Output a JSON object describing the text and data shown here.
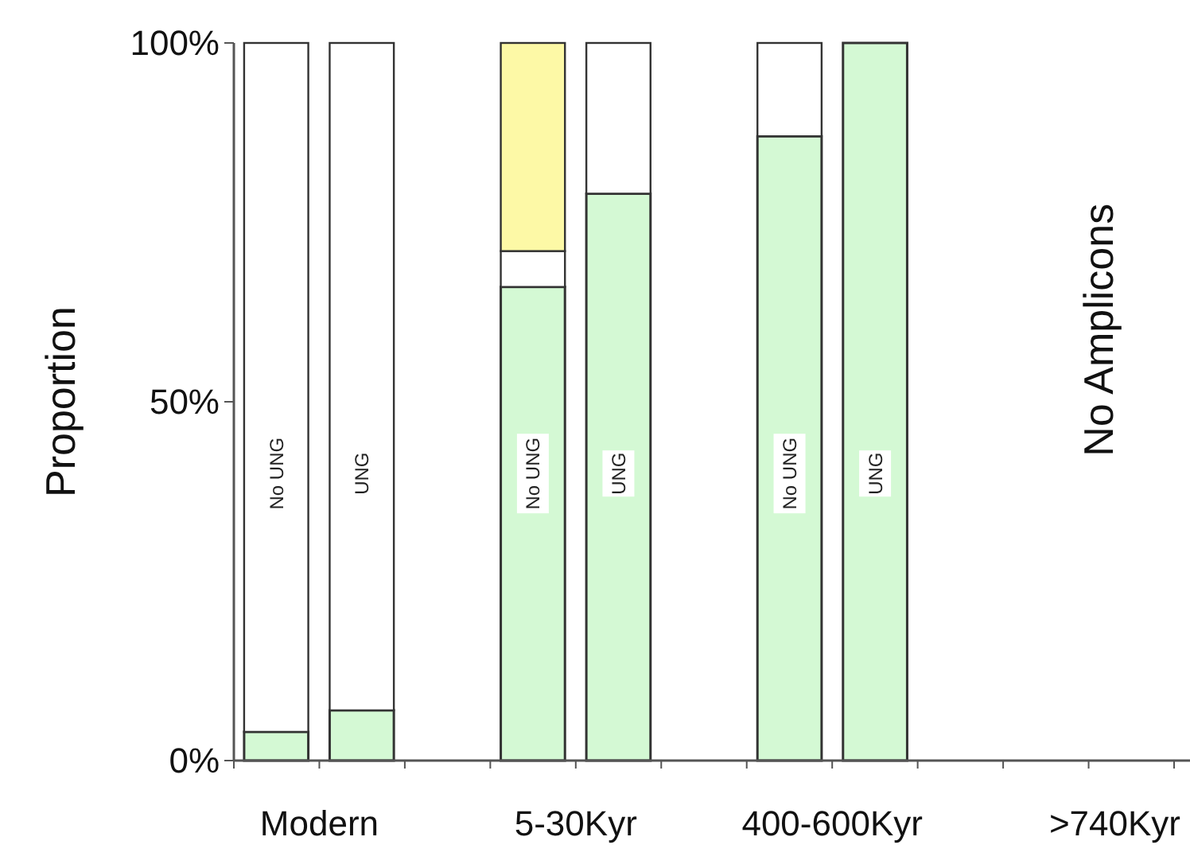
{
  "chart_data": {
    "type": "bar",
    "stacked": true,
    "ylabel": "Proportion",
    "categories": [
      "No UNG",
      "UNG",
      null,
      "No UNG",
      "UNG",
      null,
      "No UNG",
      "UNG",
      null,
      null,
      null
    ],
    "series": [
      {
        "color": "#d4f9d4",
        "values": [
          4,
          7,
          null,
          66,
          79,
          null,
          87,
          100,
          null,
          null,
          null
        ]
      },
      {
        "color": "#ffffff",
        "values": [
          96,
          93,
          null,
          5,
          21,
          null,
          13,
          null,
          null,
          null,
          null
        ]
      },
      {
        "color": "#fdf9a6",
        "values": [
          null,
          null,
          null,
          29,
          null,
          null,
          null,
          null,
          null,
          null,
          null
        ]
      }
    ],
    "ylim": [
      0,
      100
    ],
    "yticks": [
      {
        "value": 0,
        "label": "0%"
      },
      {
        "value": 50,
        "label": "50%"
      },
      {
        "value": 100,
        "label": "100%"
      }
    ],
    "grid": false,
    "annotations": [
      "Modern",
      "5-30Kyr",
      "400-600Kyr",
      ">740Kyr",
      "No Amplicons"
    ]
  }
}
